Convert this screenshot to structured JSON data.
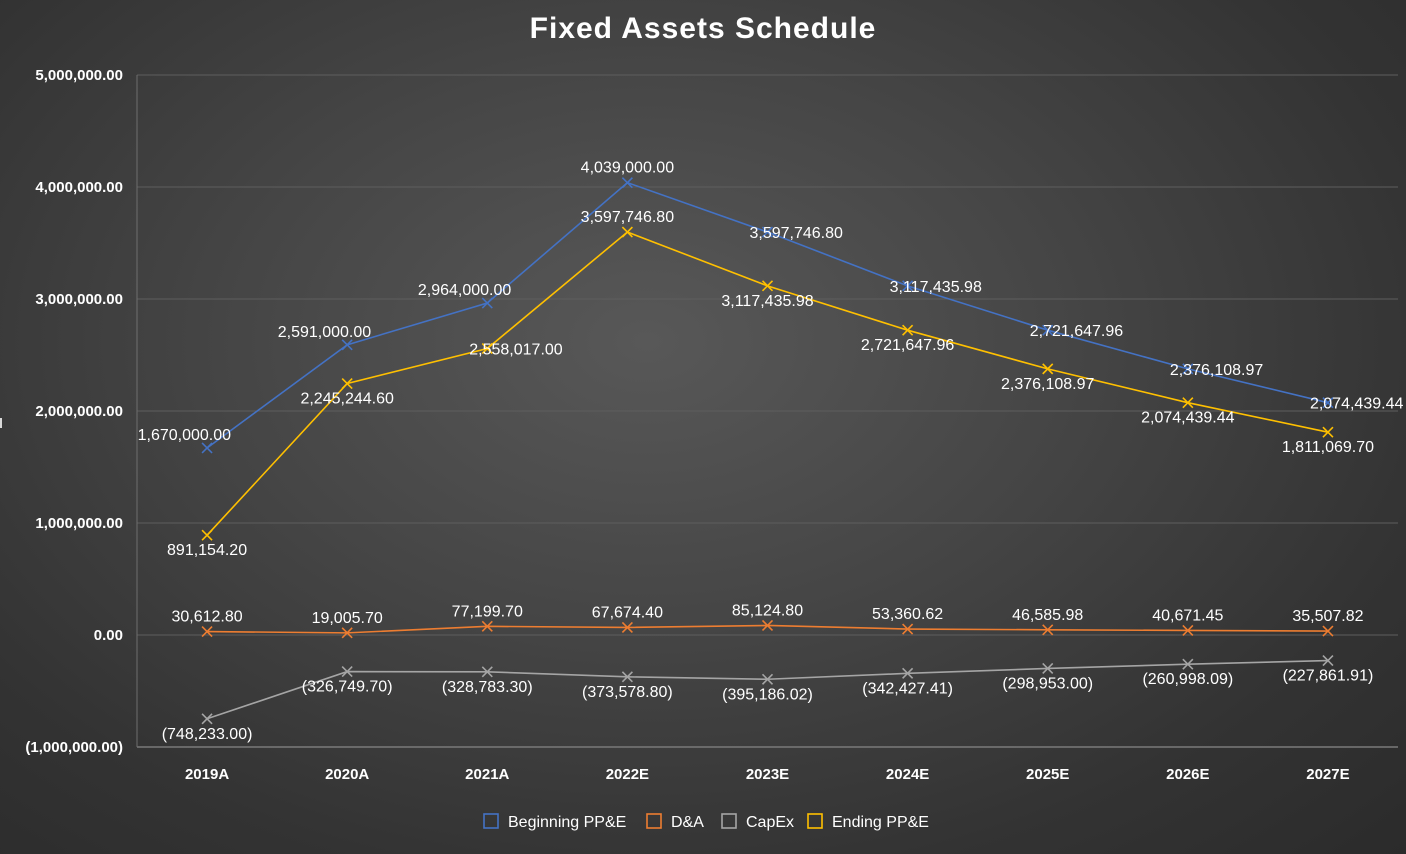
{
  "chart_data": {
    "type": "line",
    "title": "Fixed Assets Schedule",
    "xlabel": "",
    "ylabel": "",
    "categories": [
      "2019A",
      "2020A",
      "2021A",
      "2022E",
      "2023E",
      "2024E",
      "2025E",
      "2026E",
      "2027E"
    ],
    "ylim": [
      -1000000,
      5000000
    ],
    "yticks": [
      -1000000,
      0,
      1000000,
      2000000,
      3000000,
      4000000,
      5000000
    ],
    "ytick_labels": [
      "(1,000,000.00)",
      "0.00",
      "1,000,000.00",
      "2,000,000.00",
      "3,000,000.00",
      "4,000,000.00",
      "5,000,000.00"
    ],
    "grid": true,
    "legend_position": "bottom",
    "series": [
      {
        "name": "Beginning PP&E",
        "color": "#4472c4",
        "values": [
          1670000,
          2591000,
          2964000,
          4039000,
          3597746.8,
          3117435.98,
          2721647.96,
          2376108.97,
          2074439.44
        ],
        "labels": [
          "1,670,000.00",
          "2,591,000.00",
          "2,964,000.00",
          "4,039,000.00",
          "3,597,746.80",
          "3,117,435.98",
          "2,721,647.96",
          "2,376,108.97",
          "2,074,439.44"
        ]
      },
      {
        "name": "D&A",
        "color": "#ed7d31",
        "values": [
          30612.8,
          19005.7,
          77199.7,
          67674.4,
          85124.8,
          53360.62,
          46585.98,
          40671.45,
          35507.82
        ],
        "labels": [
          "30,612.80",
          "19,005.70",
          "77,199.70",
          "67,674.40",
          "85,124.80",
          "53,360.62",
          "46,585.98",
          "40,671.45",
          "35,507.82"
        ]
      },
      {
        "name": "CapEx",
        "color": "#a5a5a5",
        "values": [
          -748233,
          -326749.7,
          -328783.3,
          -373578.8,
          -395186.02,
          -342427.41,
          -298953,
          -260998.09,
          -227861.91
        ],
        "labels": [
          "(748,233.00)",
          "(326,749.70)",
          "(328,783.30)",
          "(373,578.80)",
          "(395,186.02)",
          "(342,427.41)",
          "(298,953.00)",
          "(260,998.09)",
          "(227,861.91)"
        ]
      },
      {
        "name": "Ending PP&E",
        "color": "#ffc000",
        "values": [
          891154.2,
          2245244.6,
          2558017,
          3597746.8,
          3117435.98,
          2721647.96,
          2376108.97,
          2074439.44,
          1811069.7
        ],
        "labels": [
          "891,154.20",
          "2,245,244.60",
          "2,558,017.00",
          "3,597,746.80",
          "3,117,435.98",
          "2,721,647.96",
          "2,376,108.97",
          "2,074,439.44",
          "1,811,069.70"
        ]
      }
    ]
  }
}
